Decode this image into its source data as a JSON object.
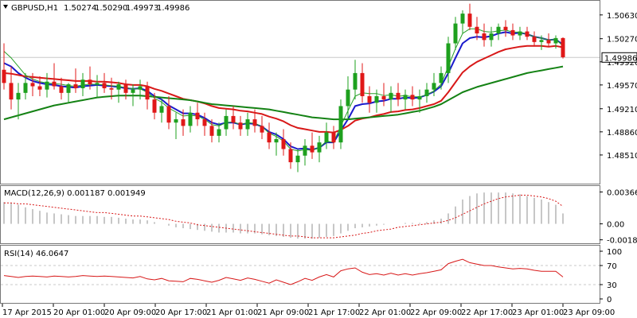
{
  "header": {
    "symbol_timeframe": "GBPUSD,H1",
    "open": "1.50274",
    "high": "1.50290",
    "low": "1.49973",
    "close": "1.49986"
  },
  "colors": {
    "background": "#ffffff",
    "grid": "#c8c8c8",
    "bull_candle": "#1ea01e",
    "bear_candle": "#e01818",
    "ema_fast": "#1a1acc",
    "ema_mid": "#d81818",
    "ema_slow": "#148214",
    "sma_thin": "#28a028",
    "macd_hist": "#b4b4b4",
    "macd_signal": "#d81818",
    "rsi": "#d81818",
    "price_tag_bg": "#ffffff"
  },
  "chart_data": [
    {
      "type": "candlestick",
      "title": "GBPUSD,H1",
      "ylim": [
        1.481,
        1.5082
      ],
      "yticks": [
        "1.50630",
        "1.50270",
        "1.49920",
        "1.49570",
        "1.49210",
        "1.48860",
        "1.48510"
      ],
      "current_price_label": "1.49986",
      "current_price": 1.49986,
      "candles": [
        [
          1.498,
          1.502,
          1.495,
          1.496
        ],
        [
          1.496,
          1.4985,
          1.492,
          1.4935
        ],
        [
          1.4935,
          1.496,
          1.4905,
          1.4945
        ],
        [
          1.4945,
          1.4975,
          1.4935,
          1.496
        ],
        [
          1.496,
          1.4975,
          1.494,
          1.4955
        ],
        [
          1.4955,
          1.497,
          1.494,
          1.495
        ],
        [
          1.495,
          1.4975,
          1.4938,
          1.4962
        ],
        [
          1.4962,
          1.499,
          1.495,
          1.4955
        ],
        [
          1.4955,
          1.4968,
          1.4935,
          1.4945
        ],
        [
          1.4945,
          1.496,
          1.493,
          1.4958
        ],
        [
          1.4958,
          1.4982,
          1.4945,
          1.4952
        ],
        [
          1.4952,
          1.4975,
          1.494,
          1.4965
        ],
        [
          1.4965,
          1.4985,
          1.495,
          1.4958
        ],
        [
          1.4958,
          1.4972,
          1.4938,
          1.496
        ],
        [
          1.496,
          1.4975,
          1.4945,
          1.4952
        ],
        [
          1.4952,
          1.4968,
          1.4935,
          1.495
        ],
        [
          1.495,
          1.4962,
          1.493,
          1.4958
        ],
        [
          1.4958,
          1.4965,
          1.4935,
          1.4945
        ],
        [
          1.4945,
          1.4958,
          1.4925,
          1.495
        ],
        [
          1.495,
          1.4965,
          1.4935,
          1.4955
        ],
        [
          1.4955,
          1.4962,
          1.492,
          1.4935
        ],
        [
          1.4935,
          1.4945,
          1.4905,
          1.4915
        ],
        [
          1.4915,
          1.4935,
          1.49,
          1.4925
        ],
        [
          1.4925,
          1.494,
          1.489,
          1.49
        ],
        [
          1.49,
          1.4915,
          1.4875,
          1.4905
        ],
        [
          1.4905,
          1.492,
          1.488,
          1.4895
        ],
        [
          1.4895,
          1.4925,
          1.4885,
          1.4915
        ],
        [
          1.4915,
          1.493,
          1.4895,
          1.4905
        ],
        [
          1.4905,
          1.4915,
          1.488,
          1.4895
        ],
        [
          1.4895,
          1.4905,
          1.487,
          1.488
        ],
        [
          1.488,
          1.49,
          1.487,
          1.489
        ],
        [
          1.489,
          1.492,
          1.488,
          1.491
        ],
        [
          1.491,
          1.4925,
          1.489,
          1.49
        ],
        [
          1.49,
          1.491,
          1.488,
          1.489
        ],
        [
          1.489,
          1.4915,
          1.488,
          1.4905
        ],
        [
          1.4905,
          1.492,
          1.4885,
          1.4895
        ],
        [
          1.4895,
          1.491,
          1.4875,
          1.4885
        ],
        [
          1.4885,
          1.49,
          1.486,
          1.487
        ],
        [
          1.487,
          1.4885,
          1.485,
          1.4875
        ],
        [
          1.4875,
          1.489,
          1.485,
          1.486
        ],
        [
          1.486,
          1.487,
          1.483,
          1.484
        ],
        [
          1.484,
          1.486,
          1.4825,
          1.485
        ],
        [
          1.485,
          1.4875,
          1.4835,
          1.4865
        ],
        [
          1.4865,
          1.4885,
          1.4845,
          1.4855
        ],
        [
          1.4855,
          1.488,
          1.484,
          1.487
        ],
        [
          1.487,
          1.49,
          1.486,
          1.4885
        ],
        [
          1.4885,
          1.4895,
          1.486,
          1.487
        ],
        [
          1.487,
          1.4935,
          1.486,
          1.4925
        ],
        [
          1.4925,
          1.497,
          1.4905,
          1.495
        ],
        [
          1.495,
          1.4995,
          1.4935,
          1.4975
        ],
        [
          1.4975,
          1.499,
          1.493,
          1.494
        ],
        [
          1.494,
          1.4955,
          1.4915,
          1.493
        ],
        [
          1.493,
          1.495,
          1.4915,
          1.494
        ],
        [
          1.494,
          1.496,
          1.4925,
          1.4935
        ],
        [
          1.4935,
          1.4955,
          1.4915,
          1.4945
        ],
        [
          1.4945,
          1.496,
          1.4925,
          1.4935
        ],
        [
          1.4935,
          1.495,
          1.492,
          1.4942
        ],
        [
          1.4942,
          1.4955,
          1.4925,
          1.4935
        ],
        [
          1.4935,
          1.495,
          1.4915,
          1.494
        ],
        [
          1.494,
          1.496,
          1.493,
          1.495
        ],
        [
          1.495,
          1.4975,
          1.494,
          1.496
        ],
        [
          1.496,
          1.4985,
          1.495,
          1.4975
        ],
        [
          1.4975,
          1.503,
          1.496,
          1.502
        ],
        [
          1.502,
          1.506,
          1.501,
          1.505
        ],
        [
          1.505,
          1.507,
          1.5035,
          1.5065
        ],
        [
          1.5065,
          1.508,
          1.504,
          1.5045
        ],
        [
          1.5045,
          1.506,
          1.5025,
          1.5035
        ],
        [
          1.5035,
          1.505,
          1.5015,
          1.5025
        ],
        [
          1.5025,
          1.5045,
          1.5015,
          1.5035
        ],
        [
          1.5035,
          1.505,
          1.5025,
          1.5045
        ],
        [
          1.5045,
          1.5055,
          1.503,
          1.504
        ],
        [
          1.504,
          1.505,
          1.5025,
          1.5032
        ],
        [
          1.5032,
          1.5045,
          1.5025,
          1.5038
        ],
        [
          1.5038,
          1.5045,
          1.5025,
          1.503
        ],
        [
          1.503,
          1.5038,
          1.5015,
          1.5022
        ],
        [
          1.5022,
          1.5032,
          1.501,
          1.5025
        ],
        [
          1.5025,
          1.5035,
          1.5015,
          1.502
        ],
        [
          1.502,
          1.5032,
          1.5012,
          1.5028
        ],
        [
          1.5028,
          1.5029,
          1.4997,
          1.4999
        ]
      ],
      "moving_averages": [
        {
          "color_key": "ema_fast",
          "values": [
            1.499,
            1.4985,
            1.4975,
            1.4968,
            1.4963,
            1.496,
            1.4958,
            1.4957,
            1.4955,
            1.4954,
            1.4953,
            1.4955,
            1.4956,
            1.4957,
            1.4956,
            1.4955,
            1.4954,
            1.4952,
            1.4951,
            1.4952,
            1.4948,
            1.494,
            1.4935,
            1.4926,
            1.492,
            1.4914,
            1.4914,
            1.4912,
            1.4907,
            1.49,
            1.4897,
            1.49,
            1.49,
            1.4897,
            1.4899,
            1.4898,
            1.4894,
            1.4886,
            1.4882,
            1.4875,
            1.4864,
            1.486,
            1.4861,
            1.4859,
            1.4862,
            1.487,
            1.487,
            1.4888,
            1.4905,
            1.4925,
            1.4928,
            1.4929,
            1.4932,
            1.4933,
            1.4936,
            1.4936,
            1.4938,
            1.4937,
            1.4938,
            1.4942,
            1.4947,
            1.4955,
            1.4975,
            1.4998,
            1.502,
            1.5028,
            1.503,
            1.5029,
            1.5031,
            1.5035,
            1.5037,
            1.5035,
            1.5036,
            1.5034,
            1.503,
            1.5028,
            1.5025,
            1.5026,
            1.5018
          ]
        },
        {
          "color_key": "ema_mid",
          "values": [
            1.4975,
            1.4974,
            1.4972,
            1.497,
            1.4969,
            1.4968,
            1.4967,
            1.4966,
            1.4965,
            1.4964,
            1.4963,
            1.4963,
            1.4963,
            1.4962,
            1.4962,
            1.4961,
            1.496,
            1.4958,
            1.4957,
            1.4957,
            1.4955,
            1.4951,
            1.4948,
            1.4944,
            1.494,
            1.4936,
            1.4934,
            1.4932,
            1.4929,
            1.4925,
            1.4922,
            1.4921,
            1.492,
            1.4918,
            1.4917,
            1.4915,
            1.4913,
            1.4909,
            1.4906,
            1.4902,
            1.4896,
            1.4892,
            1.489,
            1.4888,
            1.4886,
            1.4886,
            1.4885,
            1.4889,
            1.4895,
            1.4903,
            1.4906,
            1.4908,
            1.4911,
            1.4913,
            1.4916,
            1.4917,
            1.4919,
            1.492,
            1.4922,
            1.4925,
            1.4928,
            1.4933,
            1.4946,
            1.4961,
            1.4976,
            1.4985,
            1.4992,
            1.4997,
            1.5002,
            1.5007,
            1.5011,
            1.5013,
            1.5015,
            1.5016,
            1.5016,
            1.5016,
            1.5015,
            1.5016,
            1.5014
          ]
        },
        {
          "color_key": "ema_slow",
          "values": [
            1.4905,
            1.4908,
            1.4911,
            1.4914,
            1.4917,
            1.492,
            1.4923,
            1.4926,
            1.4928,
            1.493,
            1.4932,
            1.4934,
            1.4936,
            1.4938,
            1.4939,
            1.494,
            1.4941,
            1.4941,
            1.4941,
            1.4941,
            1.494,
            1.4939,
            1.4938,
            1.4937,
            1.4936,
            1.4935,
            1.4934,
            1.4932,
            1.493,
            1.4928,
            1.4927,
            1.4926,
            1.4925,
            1.4924,
            1.4923,
            1.4922,
            1.4921,
            1.492,
            1.4918,
            1.4916,
            1.4914,
            1.4912,
            1.491,
            1.4908,
            1.4907,
            1.4906,
            1.4905,
            1.4905,
            1.4905,
            1.4906,
            1.4907,
            1.4908,
            1.4909,
            1.491,
            1.4911,
            1.4912,
            1.4914,
            1.4916,
            1.4918,
            1.4921,
            1.4924,
            1.4928,
            1.4934,
            1.494,
            1.4946,
            1.495,
            1.4954,
            1.4957,
            1.496,
            1.4963,
            1.4966,
            1.4969,
            1.4972,
            1.4975,
            1.4977,
            1.4979,
            1.4981,
            1.4983,
            1.4985
          ]
        },
        {
          "color_key": "sma_thin",
          "values": [
            1.5008,
            1.4998,
            1.4985,
            1.4972,
            1.4966,
            1.4962,
            1.496,
            1.4959,
            1.4958,
            1.4956,
            1.4955,
            1.4957,
            1.4958,
            1.4958,
            1.4957,
            1.4956,
            1.4955,
            1.4953,
            1.4951,
            1.4951,
            1.4946,
            1.4937,
            1.4931,
            1.4922,
            1.4916,
            1.491,
            1.4911,
            1.491,
            1.4905,
            1.4897,
            1.4895,
            1.49,
            1.4901,
            1.4897,
            1.49,
            1.4899,
            1.4894,
            1.4884,
            1.4879,
            1.4872,
            1.486,
            1.4857,
            1.4859,
            1.4858,
            1.4862,
            1.4872,
            1.487,
            1.4895,
            1.4918,
            1.494,
            1.4945,
            1.4944,
            1.4944,
            1.4941,
            1.4942,
            1.494,
            1.4941,
            1.4939,
            1.4939,
            1.4942,
            1.4948,
            1.4958,
            1.4985,
            1.5012,
            1.5035,
            1.5042,
            1.5042,
            1.5038,
            1.5037,
            1.5039,
            1.504,
            1.5037,
            1.5037,
            1.5034,
            1.503,
            1.5028,
            1.5025,
            1.5026,
            1.5016
          ]
        }
      ]
    },
    {
      "type": "bar",
      "title": "MACD(12,26,9) 0.001187 0.001949",
      "ylim": [
        -0.00205,
        0.0038
      ],
      "yticks": [
        "0.003666",
        "0.00",
        "-0.001836"
      ],
      "histogram": [
        0.0025,
        0.0024,
        0.0022,
        0.0019,
        0.0017,
        0.0015,
        0.0013,
        0.0012,
        0.0011,
        0.001,
        0.0009,
        0.0009,
        0.0009,
        0.0009,
        0.0008,
        0.0008,
        0.0007,
        0.0006,
        0.0005,
        0.0005,
        0.0004,
        0.0002,
        0.0,
        -0.0002,
        -0.0004,
        -0.0005,
        -0.0006,
        -0.0007,
        -0.0008,
        -0.0009,
        -0.001,
        -0.001,
        -0.001,
        -0.0011,
        -0.0011,
        -0.0011,
        -0.0012,
        -0.0013,
        -0.0014,
        -0.0015,
        -0.0016,
        -0.0017,
        -0.0017,
        -0.0017,
        -0.0016,
        -0.0015,
        -0.0014,
        -0.0011,
        -0.0008,
        -0.0005,
        -0.0004,
        -0.0003,
        -0.0002,
        -0.0001,
        0.0,
        0.0,
        0.0001,
        0.0001,
        0.0001,
        0.0002,
        0.0004,
        0.0006,
        0.0012,
        0.002,
        0.0028,
        0.0032,
        0.0035,
        0.0036,
        0.0036,
        0.0036,
        0.0036,
        0.0035,
        0.0034,
        0.0032,
        0.003,
        0.0028,
        0.0025,
        0.0022,
        0.0012
      ],
      "signal": [
        0.0024,
        0.0024,
        0.0023,
        0.0023,
        0.0022,
        0.0021,
        0.002,
        0.0019,
        0.0018,
        0.0017,
        0.0016,
        0.0015,
        0.0014,
        0.0013,
        0.0013,
        0.0012,
        0.0011,
        0.001,
        0.0009,
        0.0009,
        0.0008,
        0.0007,
        0.0006,
        0.0005,
        0.0003,
        0.0002,
        0.0001,
        -0.0001,
        -0.0002,
        -0.0003,
        -0.0004,
        -0.0005,
        -0.0006,
        -0.0007,
        -0.0008,
        -0.0009,
        -0.001,
        -0.0011,
        -0.0012,
        -0.0013,
        -0.0014,
        -0.0014,
        -0.0015,
        -0.0016,
        -0.0016,
        -0.0016,
        -0.0016,
        -0.0015,
        -0.0014,
        -0.0013,
        -0.0011,
        -0.001,
        -0.0008,
        -0.0007,
        -0.0006,
        -0.0004,
        -0.0003,
        -0.0002,
        -0.0001,
        0.0,
        0.0001,
        0.0002,
        0.0004,
        0.0007,
        0.0011,
        0.0015,
        0.0019,
        0.0023,
        0.0026,
        0.0029,
        0.0031,
        0.0032,
        0.0033,
        0.0033,
        0.0032,
        0.0031,
        0.0029,
        0.0026,
        0.002
      ]
    },
    {
      "type": "line",
      "title": "RSI(14) 46.0647",
      "ylim": [
        0,
        100
      ],
      "yticks": [
        "100",
        "70",
        "30",
        "0"
      ],
      "levels": [
        70,
        30
      ],
      "values": [
        49,
        47,
        45,
        47,
        48,
        47,
        46,
        48,
        47,
        46,
        47,
        49,
        48,
        47,
        48,
        47,
        46,
        45,
        44,
        47,
        42,
        40,
        43,
        38,
        37,
        36,
        43,
        41,
        38,
        35,
        39,
        45,
        42,
        39,
        44,
        41,
        37,
        33,
        40,
        35,
        30,
        36,
        43,
        39,
        46,
        51,
        46,
        59,
        63,
        65,
        56,
        51,
        53,
        50,
        54,
        50,
        53,
        50,
        53,
        55,
        58,
        61,
        74,
        79,
        83,
        76,
        73,
        70,
        70,
        67,
        65,
        63,
        64,
        63,
        60,
        58,
        58,
        58,
        46
      ]
    }
  ],
  "x_axis": {
    "labels": [
      "17 Apr 2015",
      "20 Apr 01:00",
      "20 Apr 09:00",
      "20 Apr 17:00",
      "21 Apr 01:00",
      "21 Apr 09:00",
      "21 Apr 17:00",
      "22 Apr 01:00",
      "22 Apr 09:00",
      "22 Apr 17:00",
      "23 Apr 01:00",
      "23 Apr 09:00"
    ]
  }
}
